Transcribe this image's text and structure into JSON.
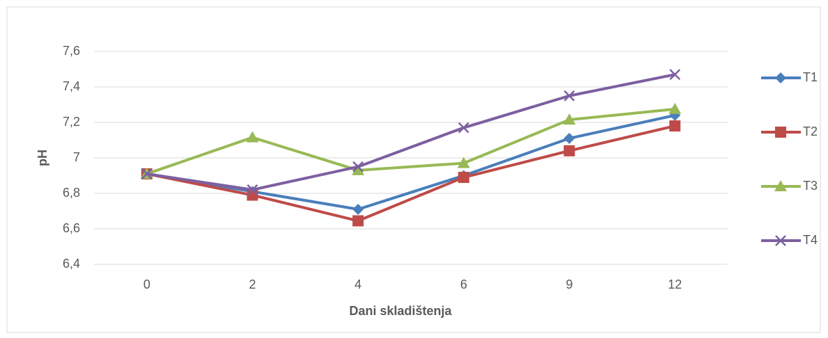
{
  "chart_data": {
    "type": "line",
    "x_label": "Dani skladištenja",
    "y_label": "pH",
    "categories": [
      "0",
      "2",
      "4",
      "6",
      "9",
      "12"
    ],
    "series": [
      {
        "name": "T1",
        "color": "#4a7ebb",
        "marker": "diamond",
        "values": [
          6.91,
          6.81,
          6.71,
          6.9,
          7.11,
          7.24
        ]
      },
      {
        "name": "T2",
        "color": "#be4b48",
        "marker": "square",
        "values": [
          6.91,
          6.79,
          6.645,
          6.89,
          7.04,
          7.18
        ]
      },
      {
        "name": "T3",
        "color": "#98b954",
        "marker": "triangle",
        "values": [
          6.91,
          7.115,
          6.93,
          6.97,
          7.215,
          7.275
        ]
      },
      {
        "name": "T4",
        "color": "#7d5fa0",
        "marker": "x",
        "values": [
          6.91,
          6.82,
          6.95,
          7.17,
          7.35,
          7.47
        ]
      }
    ],
    "ylim": [
      6.4,
      7.6
    ],
    "yticks": [
      {
        "value": 6.4,
        "label": "6,4"
      },
      {
        "value": 6.6,
        "label": "6,6"
      },
      {
        "value": 6.8,
        "label": "6,8"
      },
      7,
      {
        "value": 7.2,
        "label": "7,2"
      },
      {
        "value": 7.4,
        "label": "7,4"
      },
      {
        "value": 7.6,
        "label": "7,6"
      }
    ],
    "grid": true,
    "legend": "right"
  }
}
